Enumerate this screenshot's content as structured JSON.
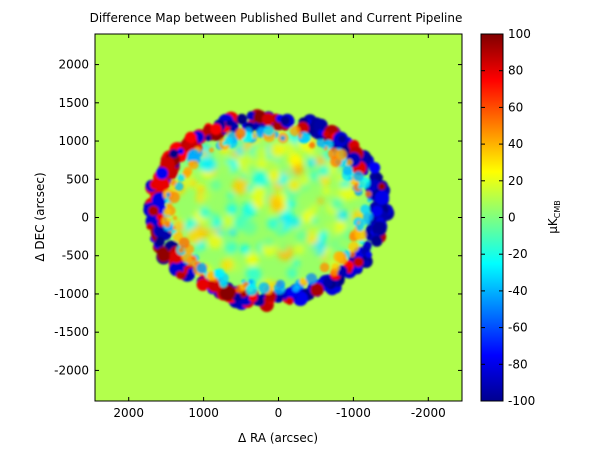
{
  "chart_data": {
    "type": "heatmap",
    "title": "Difference Map between Published Bullet and Current Pipeline",
    "xlabel": "Δ RA (arcsec)",
    "ylabel": "Δ DEC (arcsec)",
    "x_reversed": true,
    "xlim": [
      2450,
      -2450
    ],
    "ylim": [
      -2400,
      2400
    ],
    "xticks": [
      2000,
      1000,
      0,
      -1000,
      -2000
    ],
    "xtick_labels": [
      "2000",
      "1000",
      "0",
      "-1000",
      "-2000"
    ],
    "yticks": [
      2000,
      1500,
      1000,
      500,
      0,
      -500,
      -1000,
      -1500,
      -2000
    ],
    "ytick_labels": [
      "2000",
      "1500",
      "1000",
      "500",
      "0",
      "-500",
      "-1000",
      "-1500",
      "-2000"
    ],
    "colorbar": {
      "label_main": "μK",
      "label_sub": "CMB",
      "range": [
        -100,
        100
      ],
      "ticks": [
        100,
        80,
        60,
        40,
        20,
        0,
        -20,
        -40,
        -60,
        -80,
        -100
      ],
      "tick_labels": [
        "100",
        "80",
        "60",
        "40",
        "20",
        "0",
        "-20",
        "-40",
        "-60",
        "-80",
        "-100"
      ],
      "colormap": "jet"
    },
    "background_value": 10,
    "feature": {
      "shape": "ellipse",
      "center": [
        150,
        100
      ],
      "semi_axis_ra": 1570,
      "semi_axis_dec": 1220,
      "interior_value": 5,
      "rim_east_value": 100,
      "rim_west_value": -100
    },
    "grid": false
  },
  "colors": {
    "background": "#ffffff",
    "axis": "#000000",
    "field": "#7ffe7f"
  }
}
